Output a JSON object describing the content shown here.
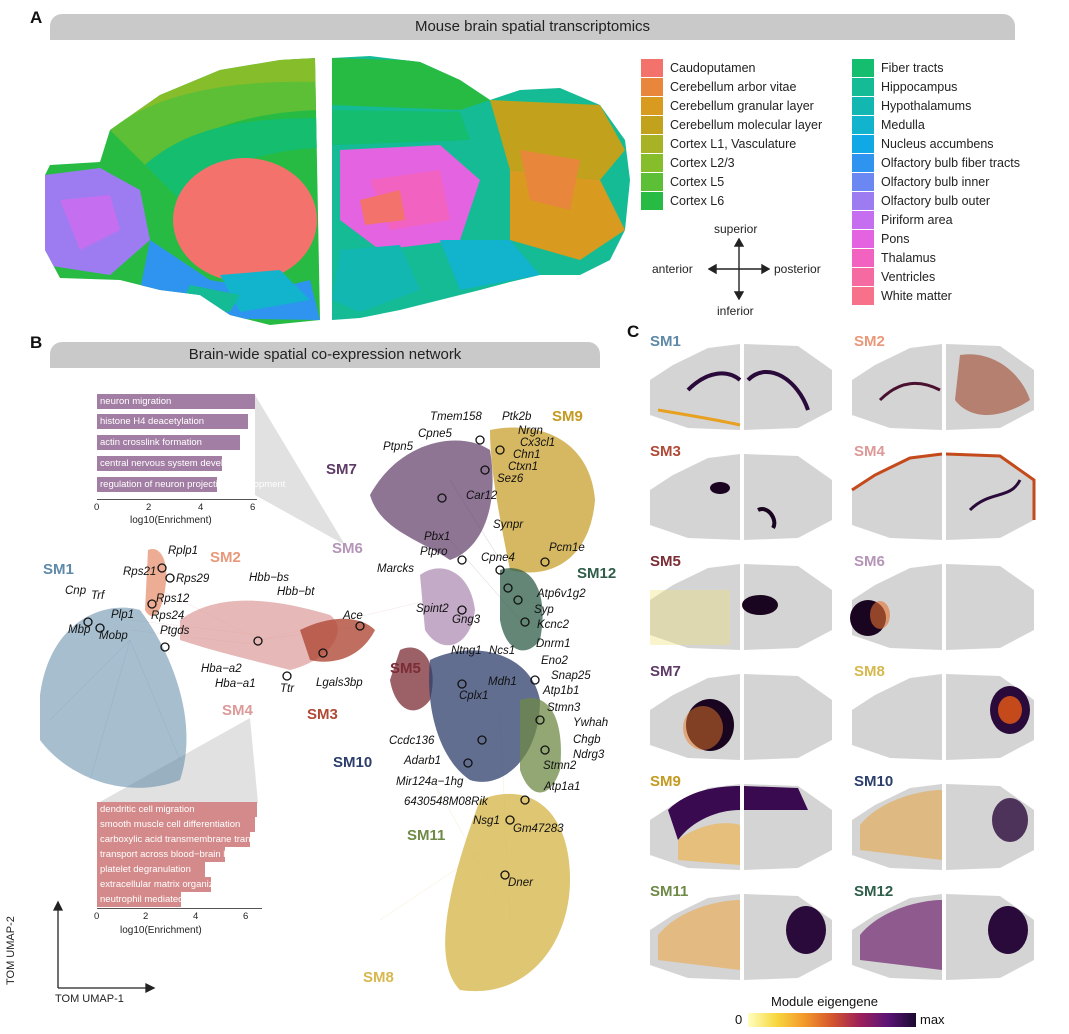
{
  "panel_a": {
    "letter": "A",
    "title": "Mouse brain spatial transcriptomics",
    "legend_left": [
      {
        "label": "Caudoputamen",
        "color": "#f3726c"
      },
      {
        "label": "Cerebellum arbor vitae",
        "color": "#e8863b"
      },
      {
        "label": "Cerebellum granular layer",
        "color": "#d89a1f"
      },
      {
        "label": "Cerebellum molecular layer",
        "color": "#c2a21c"
      },
      {
        "label": "Cortex L1, Vasculature",
        "color": "#a7b324"
      },
      {
        "label": "Cortex L2/3",
        "color": "#86bd2b"
      },
      {
        "label": "Cortex L5",
        "color": "#5cbf36"
      },
      {
        "label": "Cortex L6",
        "color": "#27bb43"
      }
    ],
    "legend_right": [
      {
        "label": "Fiber tracts",
        "color": "#15bd6e"
      },
      {
        "label": "Hippocampus",
        "color": "#14bb94"
      },
      {
        "label": "Hypothalamums",
        "color": "#12b7b2"
      },
      {
        "label": "Medulla",
        "color": "#12b3cc"
      },
      {
        "label": "Nucleus accumbens",
        "color": "#10a9e6"
      },
      {
        "label": "Olfactory bulb fiber tracts",
        "color": "#2f93f0"
      },
      {
        "label": "Olfactory bulb inner",
        "color": "#6b88f2"
      },
      {
        "label": "Olfactory bulb outer",
        "color": "#9d7cf2"
      },
      {
        "label": "Piriform area",
        "color": "#c66ef0"
      },
      {
        "label": "Pons",
        "color": "#e463e0"
      },
      {
        "label": "Thalamus",
        "color": "#f262c1"
      },
      {
        "label": "Ventricles",
        "color": "#f66aa2"
      },
      {
        "label": "White matter",
        "color": "#f7718a"
      }
    ],
    "compass": {
      "superior": "superior",
      "inferior": "inferior",
      "anterior": "anterior",
      "posterior": "posterior"
    }
  },
  "panel_b": {
    "letter": "B",
    "title": "Brain-wide spatial co-expression network",
    "go_top": {
      "color": "#a37ea4",
      "terms": [
        {
          "label": "neuron migration",
          "value": 6.1
        },
        {
          "label": "histone H4 deacetylation",
          "value": 5.8
        },
        {
          "label": "actin crosslink formation",
          "value": 5.5
        },
        {
          "label": "central nervous system development",
          "value": 4.8
        },
        {
          "label": "regulation of neuron projection development",
          "value": 4.6
        }
      ],
      "ticks": [
        "0",
        "2",
        "4",
        "6"
      ],
      "xlabel": "log10(Enrichment)"
    },
    "go_bottom": {
      "color": "#d48a8a",
      "terms": [
        {
          "label": "dendritic cell migration",
          "value": 6.5
        },
        {
          "label": "smooth muscle cell differentiation",
          "value": 6.4
        },
        {
          "label": "carboxylic acid transmembrane transport",
          "value": 6.2
        },
        {
          "label": "transport across blood−brain barrier",
          "value": 5.2
        },
        {
          "label": "platelet degranulation",
          "value": 4.4
        },
        {
          "label": "extracellular matrix organization",
          "value": 4.6
        },
        {
          "label": "neutrophil mediated immunity",
          "value": 3.4
        }
      ],
      "ticks": [
        "0",
        "2",
        "4",
        "6"
      ],
      "xlabel": "log10(Enrichment)"
    },
    "modules": [
      {
        "label": "SM1",
        "color": "#5e89a8"
      },
      {
        "label": "SM2",
        "color": "#e9987a"
      },
      {
        "label": "SM3",
        "color": "#b04a37"
      },
      {
        "label": "SM4",
        "color": "#dc9a98"
      },
      {
        "label": "SM5",
        "color": "#7b2c34"
      },
      {
        "label": "SM6",
        "color": "#b495b8"
      },
      {
        "label": "SM7",
        "color": "#5e3b66"
      },
      {
        "label": "SM8",
        "color": "#d7b84f"
      },
      {
        "label": "SM9",
        "color": "#c59a20"
      },
      {
        "label": "SM10",
        "color": "#2c3e6b"
      },
      {
        "label": "SM11",
        "color": "#6f8a47"
      },
      {
        "label": "SM12",
        "color": "#2f5e4a"
      }
    ],
    "genes": [
      "Tmem158",
      "Ptk2b",
      "Nrgn",
      "Cpne5",
      "Cx3cl1",
      "Ptpn5",
      "Chn1",
      "Ctxn1",
      "Sez6",
      "Car12",
      "Synpr",
      "Pbx1",
      "Ptpro",
      "Cpne4",
      "Pcm1e",
      "Marcks",
      "Atp6v1g2",
      "Syp",
      "Spint2",
      "Gng3",
      "Kcnc2",
      "Dnrm1",
      "Ntng1",
      "Ncs1",
      "Eno2",
      "Snap25",
      "Mdh1",
      "Atp1b1",
      "Cplx1",
      "Stmn3",
      "Ywhah",
      "Ccdc136",
      "Chgb",
      "Ndrg3",
      "Adarb1",
      "Stmn2",
      "Mir124a−1hg",
      "Atp1a1",
      "6430548M08Rik",
      "Nsg1",
      "Gm47283",
      "Dner",
      "Rplp1",
      "Rps21",
      "Rps29",
      "Rps12",
      "Rps24",
      "Ptgds",
      "Cnp",
      "Trf",
      "Plp1",
      "Mbp",
      "Mobp",
      "Hbb−bs",
      "Hbb−bt",
      "Ace",
      "Hba−a2",
      "Hba−a1",
      "Ttr",
      "Lgals3bp"
    ],
    "umap_x": "TOM UMAP-1",
    "umap_y": "TOM UMAP-2"
  },
  "panel_c": {
    "letter": "C",
    "maps": [
      "SM1",
      "SM2",
      "SM3",
      "SM4",
      "SM5",
      "SM6",
      "SM7",
      "SM8",
      "SM9",
      "SM10",
      "SM11",
      "SM12"
    ],
    "colorbar_title": "Module eigengene",
    "colorbar_min": "0",
    "colorbar_max": "max"
  }
}
